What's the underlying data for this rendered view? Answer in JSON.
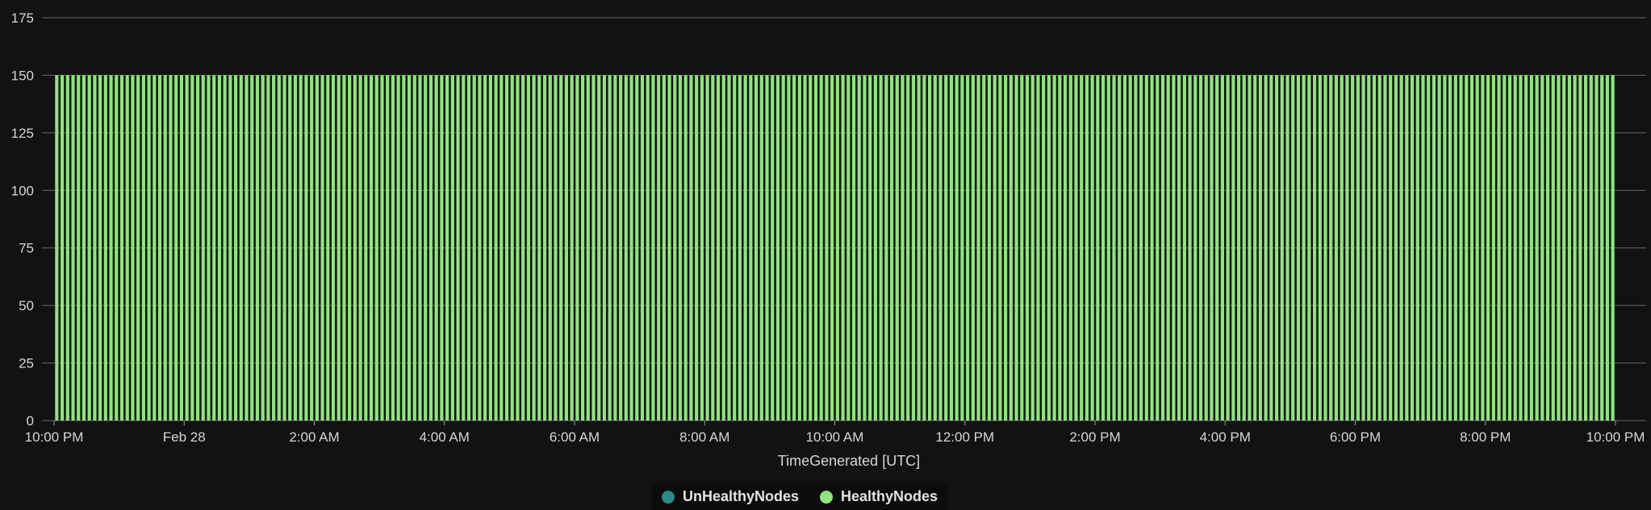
{
  "chart_data": {
    "type": "bar",
    "xlabel": "TimeGenerated [UTC]",
    "ylabel": "",
    "ylim": [
      0,
      175
    ],
    "y_ticks": [
      0,
      25,
      50,
      75,
      100,
      125,
      150,
      175
    ],
    "x_tick_labels": [
      "10:00 PM",
      "Feb 28",
      "2:00 AM",
      "4:00 AM",
      "6:00 AM",
      "8:00 AM",
      "10:00 AM",
      "12:00 PM",
      "2:00 PM",
      "4:00 PM",
      "6:00 PM",
      "8:00 PM",
      "10:00 PM"
    ],
    "x_range": [
      "Feb 27 10:00 PM",
      "Feb 28 10:00 PM"
    ],
    "bar_interval": "5 minutes",
    "bar_count": 288,
    "grid": true,
    "legend_position": "bottom-center",
    "series": [
      {
        "name": "UnHealthyNodes",
        "value_all_intervals": 0,
        "color": "#2b8a8a"
      },
      {
        "name": "HealthyNodes",
        "value_all_intervals": 150,
        "color": "#8ee57b"
      }
    ]
  },
  "colors": {
    "background": "#121212",
    "grid": "#6a6a6a",
    "text": "#d6d6d6"
  }
}
